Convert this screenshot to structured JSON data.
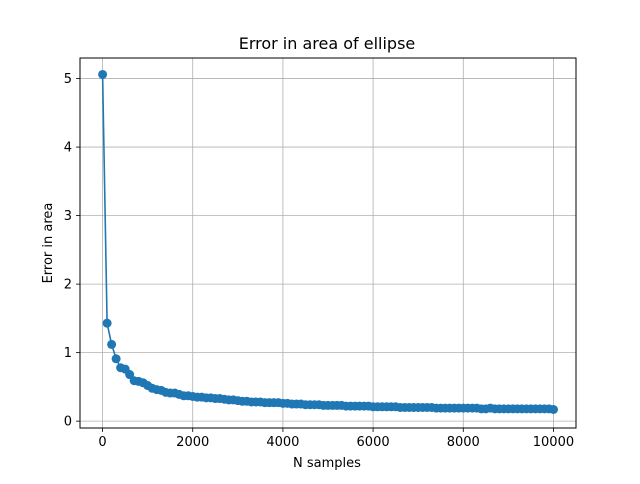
{
  "chart_data": {
    "type": "line",
    "title": "Error in area of ellipse",
    "xlabel": "N samples",
    "ylabel": "Error in area",
    "xlim": [
      -500,
      10500
    ],
    "ylim": [
      -0.1,
      5.3
    ],
    "xticks": [
      0,
      2000,
      4000,
      6000,
      8000,
      10000
    ],
    "xtick_labels": [
      "0",
      "2000",
      "4000",
      "6000",
      "8000",
      "10000"
    ],
    "yticks": [
      0,
      1,
      2,
      3,
      4,
      5
    ],
    "ytick_labels": [
      "0",
      "1",
      "2",
      "3",
      "4",
      "5"
    ],
    "grid": true,
    "marker": "circle",
    "color": "#1f77b4",
    "series": [
      {
        "x": [
          1,
          101,
          201,
          301,
          401,
          501,
          601,
          701,
          801,
          901,
          1001,
          1101,
          1201,
          1301,
          1401,
          1501,
          1601,
          1701,
          1801,
          1901,
          2001,
          2101,
          2201,
          2301,
          2401,
          2501,
          2601,
          2701,
          2801,
          2901,
          3001,
          3101,
          3201,
          3301,
          3401,
          3501,
          3601,
          3701,
          3801,
          3901,
          4001,
          4101,
          4201,
          4301,
          4401,
          4501,
          4601,
          4701,
          4801,
          4901,
          5001,
          5101,
          5201,
          5301,
          5401,
          5501,
          5601,
          5701,
          5801,
          5901,
          6001,
          6101,
          6201,
          6301,
          6401,
          6501,
          6601,
          6701,
          6801,
          6901,
          7001,
          7101,
          7201,
          7301,
          7401,
          7501,
          7601,
          7701,
          7801,
          7901,
          8001,
          8101,
          8201,
          8301,
          8401,
          8501,
          8601,
          8701,
          8801,
          8901,
          9001,
          9101,
          9201,
          9301,
          9401,
          9501,
          9601,
          9701,
          9801,
          9901,
          10001
        ],
        "y": [
          5.06,
          1.43,
          1.12,
          0.91,
          0.78,
          0.76,
          0.68,
          0.59,
          0.58,
          0.56,
          0.52,
          0.48,
          0.46,
          0.45,
          0.42,
          0.41,
          0.41,
          0.39,
          0.37,
          0.37,
          0.36,
          0.35,
          0.35,
          0.34,
          0.34,
          0.33,
          0.33,
          0.32,
          0.31,
          0.31,
          0.3,
          0.29,
          0.29,
          0.28,
          0.28,
          0.28,
          0.27,
          0.27,
          0.27,
          0.27,
          0.26,
          0.26,
          0.25,
          0.25,
          0.25,
          0.24,
          0.24,
          0.24,
          0.24,
          0.23,
          0.23,
          0.23,
          0.23,
          0.23,
          0.22,
          0.22,
          0.22,
          0.22,
          0.22,
          0.22,
          0.21,
          0.21,
          0.21,
          0.21,
          0.21,
          0.21,
          0.2,
          0.2,
          0.2,
          0.2,
          0.2,
          0.2,
          0.2,
          0.2,
          0.19,
          0.19,
          0.19,
          0.19,
          0.19,
          0.19,
          0.19,
          0.19,
          0.19,
          0.19,
          0.18,
          0.18,
          0.19,
          0.18,
          0.18,
          0.18,
          0.18,
          0.18,
          0.18,
          0.18,
          0.18,
          0.18,
          0.18,
          0.18,
          0.18,
          0.18,
          0.17
        ]
      }
    ]
  }
}
